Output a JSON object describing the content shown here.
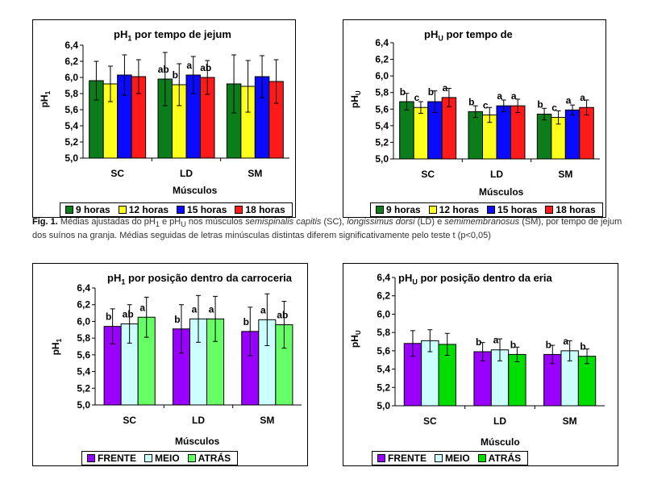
{
  "caption": {
    "label": "Fig. 1.",
    "t1": "Médias ajustadas do pH",
    "s1": "1",
    "t2": " e pH",
    "s2": "U",
    "t3": " nos músculos ",
    "i1": "semispinalis capitis",
    "t4": " (SC), ",
    "i2": "longissimus dorsi",
    "t5": " (LD) e ",
    "i3": "semimembranosus",
    "t6": " (SM), por tempo de jejum dos suínos na granja. Médias seguidas de letras minúsculas distintas diferem significativamente pelo teste t (p<0,05)"
  },
  "colors": {
    "t9": "#0b7d1a",
    "t12": "#ffff1a",
    "t15": "#0a0aff",
    "t18": "#ff1a1a",
    "frente": "#9900ff",
    "meio": "#ccffff",
    "atras1": "#66ff66",
    "atras2": "#00dd00"
  },
  "chart_data": [
    {
      "id": "c1",
      "type": "bar",
      "title_pre": "pH",
      "title_sub": "1",
      "title_post": " por tempo de jejum",
      "ylabel_pre": "pH",
      "ylabel_sub": "1",
      "xlabel": "Músculos",
      "categories": [
        "SC",
        "LD",
        "SM"
      ],
      "ylim": [
        5.0,
        6.4
      ],
      "yticks": [
        "5,0",
        "5,2",
        "5,4",
        "5,6",
        "5,8",
        "6,0",
        "6,2",
        "6,4"
      ],
      "series": [
        {
          "name": "9 horas",
          "color": "#0b7d1a",
          "values": [
            5.96,
            5.98,
            5.92
          ],
          "err": [
            0.24,
            0.33,
            0.36
          ],
          "letters": [
            "",
            "ab",
            ""
          ]
        },
        {
          "name": "12 horas",
          "color": "#ffff1a",
          "values": [
            5.92,
            5.91,
            5.89
          ],
          "err": [
            0.22,
            0.26,
            0.32
          ],
          "letters": [
            "",
            "b",
            ""
          ]
        },
        {
          "name": "15 horas",
          "color": "#0a0aff",
          "values": [
            6.03,
            6.03,
            6.01
          ],
          "err": [
            0.25,
            0.23,
            0.26
          ],
          "letters": [
            "",
            "a",
            ""
          ]
        },
        {
          "name": "18 horas",
          "color": "#ff1a1a",
          "values": [
            6.01,
            6.0,
            5.95
          ],
          "err": [
            0.21,
            0.21,
            0.27
          ],
          "letters": [
            "",
            "ab",
            ""
          ]
        }
      ]
    },
    {
      "id": "c2",
      "type": "bar",
      "title_pre": "pH",
      "title_sub": "U",
      "title_post": "  por tempo de",
      "ylabel_pre": "pH",
      "ylabel_sub": "U",
      "xlabel": "Músculos",
      "categories": [
        "SC",
        "LD",
        "SM"
      ],
      "ylim": [
        5.0,
        6.4
      ],
      "yticks": [
        "5,0",
        "5,2",
        "5,4",
        "5,6",
        "5,8",
        "6,0",
        "6,2",
        "6,4"
      ],
      "series": [
        {
          "name": "9 horas",
          "color": "#0b7d1a",
          "values": [
            5.69,
            5.57,
            5.54
          ],
          "err": [
            0.1,
            0.07,
            0.07
          ],
          "letters": [
            "b",
            "b",
            "b"
          ]
        },
        {
          "name": "12 horas",
          "color": "#ffff1a",
          "values": [
            5.62,
            5.53,
            5.5
          ],
          "err": [
            0.07,
            0.09,
            0.08
          ],
          "letters": [
            "c",
            "c",
            "c"
          ]
        },
        {
          "name": "15 horas",
          "color": "#0a0aff",
          "values": [
            5.69,
            5.64,
            5.59
          ],
          "err": [
            0.13,
            0.07,
            0.06
          ],
          "letters": [
            "b",
            "a",
            "a"
          ]
        },
        {
          "name": "18 horas",
          "color": "#ff1a1a",
          "values": [
            5.74,
            5.64,
            5.62
          ],
          "err": [
            0.11,
            0.08,
            0.09
          ],
          "letters": [
            "a",
            "a",
            "a"
          ]
        }
      ]
    },
    {
      "id": "c3",
      "type": "bar",
      "title_pre": "pH",
      "title_sub": "1",
      "title_post": " por posição dentro da carroceria",
      "ylabel_pre": "pH",
      "ylabel_sub": "1",
      "xlabel": "Músculos",
      "categories": [
        "SC",
        "LD",
        "SM"
      ],
      "ylim": [
        5.0,
        6.4
      ],
      "yticks": [
        "5,0",
        "5,2",
        "5,4",
        "5,6",
        "5,8",
        "6,0",
        "6,2",
        "6,4"
      ],
      "series": [
        {
          "name": "FRENTE",
          "color": "#9900ff",
          "values": [
            5.94,
            5.91,
            5.88
          ],
          "err": [
            0.21,
            0.29,
            0.29
          ],
          "letters": [
            "b",
            "b",
            "b"
          ]
        },
        {
          "name": "MEIO",
          "color": "#ccffff",
          "values": [
            5.97,
            6.03,
            6.02
          ],
          "err": [
            0.23,
            0.28,
            0.31
          ],
          "letters": [
            "ab",
            "a",
            "a"
          ]
        },
        {
          "name": "ATRÁS",
          "color": "#66ff66",
          "values": [
            6.05,
            6.03,
            5.96
          ],
          "err": [
            0.24,
            0.27,
            0.28
          ],
          "letters": [
            "a",
            "a",
            "ab"
          ]
        }
      ]
    },
    {
      "id": "c4",
      "type": "bar",
      "title_pre": "pH",
      "title_sub": "U",
      "title_post": " por posição dentro da       eria",
      "ylabel_pre": "pH",
      "ylabel_sub": "U",
      "xlabel": "Músculo",
      "categories": [
        "SC",
        "LD",
        "SM"
      ],
      "ylim": [
        5.0,
        6.4
      ],
      "yticks": [
        "5,0",
        "5,2",
        "5,4",
        "5,6",
        "5,8",
        "6,0",
        "6,2",
        "6,4"
      ],
      "series": [
        {
          "name": "FRENTE",
          "color": "#9900ff",
          "values": [
            5.68,
            5.59,
            5.56
          ],
          "err": [
            0.14,
            0.1,
            0.1
          ],
          "letters": [
            "",
            "b",
            "b"
          ]
        },
        {
          "name": "MEIO",
          "color": "#ccffff",
          "values": [
            5.71,
            5.61,
            5.6
          ],
          "err": [
            0.12,
            0.12,
            0.11
          ],
          "letters": [
            "",
            "a",
            "a"
          ]
        },
        {
          "name": "ATRÁS",
          "color": "#00dd00",
          "values": [
            5.67,
            5.56,
            5.54
          ],
          "err": [
            0.12,
            0.08,
            0.08
          ],
          "letters": [
            "",
            "b",
            "b"
          ]
        }
      ]
    }
  ]
}
